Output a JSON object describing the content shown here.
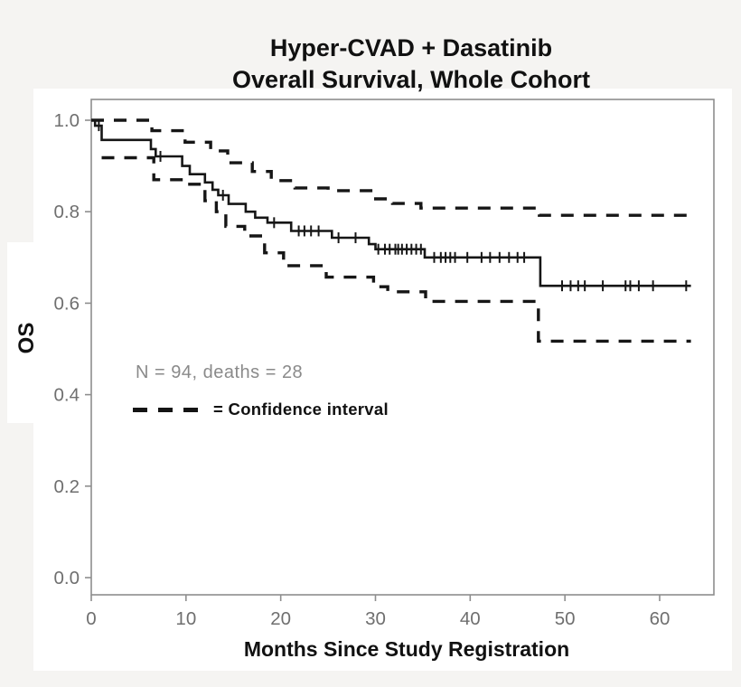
{
  "title": {
    "line1": "Hyper-CVAD + Dasatinib",
    "line2": "Overall Survival, Whole Cohort"
  },
  "y_axis": {
    "label": "OS",
    "tick_labels": [
      "1.0",
      "0.8",
      "0.6",
      "0.4",
      "0.2",
      "0.0"
    ]
  },
  "x_axis": {
    "label": "Months Since Study Registration",
    "tick_labels": [
      "0",
      "10",
      "20",
      "30",
      "40",
      "50",
      "60"
    ]
  },
  "stats_note": "N = 94, deaths = 28",
  "legend": {
    "ci_label": "= Confidence interval"
  },
  "colors": {
    "background": "#f5f4f2",
    "panel": "#ffffff",
    "curve": "#161616",
    "spine": "#8e8e8e",
    "tick_text": "#6f6f6f",
    "note_text": "#8a8a8a"
  },
  "chart_data": {
    "type": "line",
    "subtype": "kaplan_meier_step",
    "title": "Hyper-CVAD + Dasatinib — Overall Survival, Whole Cohort",
    "xlabel": "Months Since Study Registration",
    "ylabel": "OS",
    "xlim": [
      0,
      65.7
    ],
    "ylim": [
      0.0,
      1.0
    ],
    "x_ticks": [
      0,
      10,
      20,
      30,
      40,
      50,
      60
    ],
    "y_ticks": [
      1.0,
      0.8,
      0.6,
      0.4,
      0.2,
      0.0
    ],
    "grid": false,
    "n": 94,
    "deaths": 28,
    "annotation": "N = 94, deaths = 28",
    "legend_entry": "= Confidence interval",
    "series": [
      {
        "name": "OS estimate",
        "style": "solid",
        "points": [
          [
            0,
            1.0
          ],
          [
            0.4,
            0.988
          ],
          [
            1.1,
            0.957
          ],
          [
            6.3,
            0.937
          ],
          [
            6.8,
            0.921
          ],
          [
            9.6,
            0.9
          ],
          [
            10.4,
            0.882
          ],
          [
            12.0,
            0.864
          ],
          [
            12.8,
            0.848
          ],
          [
            13.4,
            0.836
          ],
          [
            14.5,
            0.817
          ],
          [
            16.3,
            0.8
          ],
          [
            17.3,
            0.787
          ],
          [
            18.6,
            0.776
          ],
          [
            21.1,
            0.758
          ],
          [
            25.4,
            0.743
          ],
          [
            29.3,
            0.729
          ],
          [
            30.0,
            0.718
          ],
          [
            35.2,
            0.7
          ],
          [
            47.4,
            0.638
          ],
          [
            63.3,
            0.638
          ]
        ]
      },
      {
        "name": "Upper confidence interval",
        "style": "dashed",
        "points": [
          [
            0,
            1.0
          ],
          [
            6.4,
            0.977
          ],
          [
            9.9,
            0.952
          ],
          [
            12.6,
            0.933
          ],
          [
            14.4,
            0.907
          ],
          [
            17.0,
            0.888
          ],
          [
            19.0,
            0.868
          ],
          [
            21.5,
            0.852
          ],
          [
            25.0,
            0.846
          ],
          [
            29.7,
            0.828
          ],
          [
            31.8,
            0.818
          ],
          [
            34.8,
            0.808
          ],
          [
            47.3,
            0.792
          ],
          [
            63.3,
            0.792
          ]
        ]
      },
      {
        "name": "Lower confidence interval",
        "style": "dashed",
        "points": [
          [
            1.1,
            0.918
          ],
          [
            6.6,
            0.87
          ],
          [
            9.8,
            0.86
          ],
          [
            12.0,
            0.824
          ],
          [
            13.2,
            0.8
          ],
          [
            14.2,
            0.768
          ],
          [
            16.2,
            0.747
          ],
          [
            18.3,
            0.71
          ],
          [
            20.3,
            0.682
          ],
          [
            24.8,
            0.657
          ],
          [
            29.8,
            0.636
          ],
          [
            31.3,
            0.625
          ],
          [
            35.3,
            0.604
          ],
          [
            47.2,
            0.517
          ],
          [
            63.3,
            0.517
          ]
        ]
      }
    ],
    "censor_marks": [
      [
        0.8,
        0.988
      ],
      [
        7.3,
        0.921
      ],
      [
        13.9,
        0.836
      ],
      [
        19.3,
        0.776
      ],
      [
        21.9,
        0.758
      ],
      [
        22.5,
        0.758
      ],
      [
        23.2,
        0.758
      ],
      [
        24.0,
        0.758
      ],
      [
        26.1,
        0.743
      ],
      [
        27.9,
        0.743
      ],
      [
        30.3,
        0.718
      ],
      [
        31.0,
        0.718
      ],
      [
        31.5,
        0.718
      ],
      [
        32.1,
        0.718
      ],
      [
        32.4,
        0.718
      ],
      [
        32.8,
        0.718
      ],
      [
        33.3,
        0.718
      ],
      [
        33.8,
        0.718
      ],
      [
        34.3,
        0.718
      ],
      [
        34.8,
        0.718
      ],
      [
        36.2,
        0.7
      ],
      [
        36.9,
        0.7
      ],
      [
        37.4,
        0.7
      ],
      [
        37.9,
        0.7
      ],
      [
        38.4,
        0.7
      ],
      [
        39.7,
        0.7
      ],
      [
        41.2,
        0.7
      ],
      [
        42.1,
        0.7
      ],
      [
        43.1,
        0.7
      ],
      [
        44.1,
        0.7
      ],
      [
        45.0,
        0.7
      ],
      [
        45.7,
        0.7
      ],
      [
        49.7,
        0.638
      ],
      [
        50.6,
        0.638
      ],
      [
        51.4,
        0.638
      ],
      [
        52.1,
        0.638
      ],
      [
        54.0,
        0.638
      ],
      [
        56.4,
        0.638
      ],
      [
        56.9,
        0.638
      ],
      [
        57.8,
        0.638
      ],
      [
        59.3,
        0.638
      ],
      [
        62.8,
        0.638
      ]
    ]
  }
}
